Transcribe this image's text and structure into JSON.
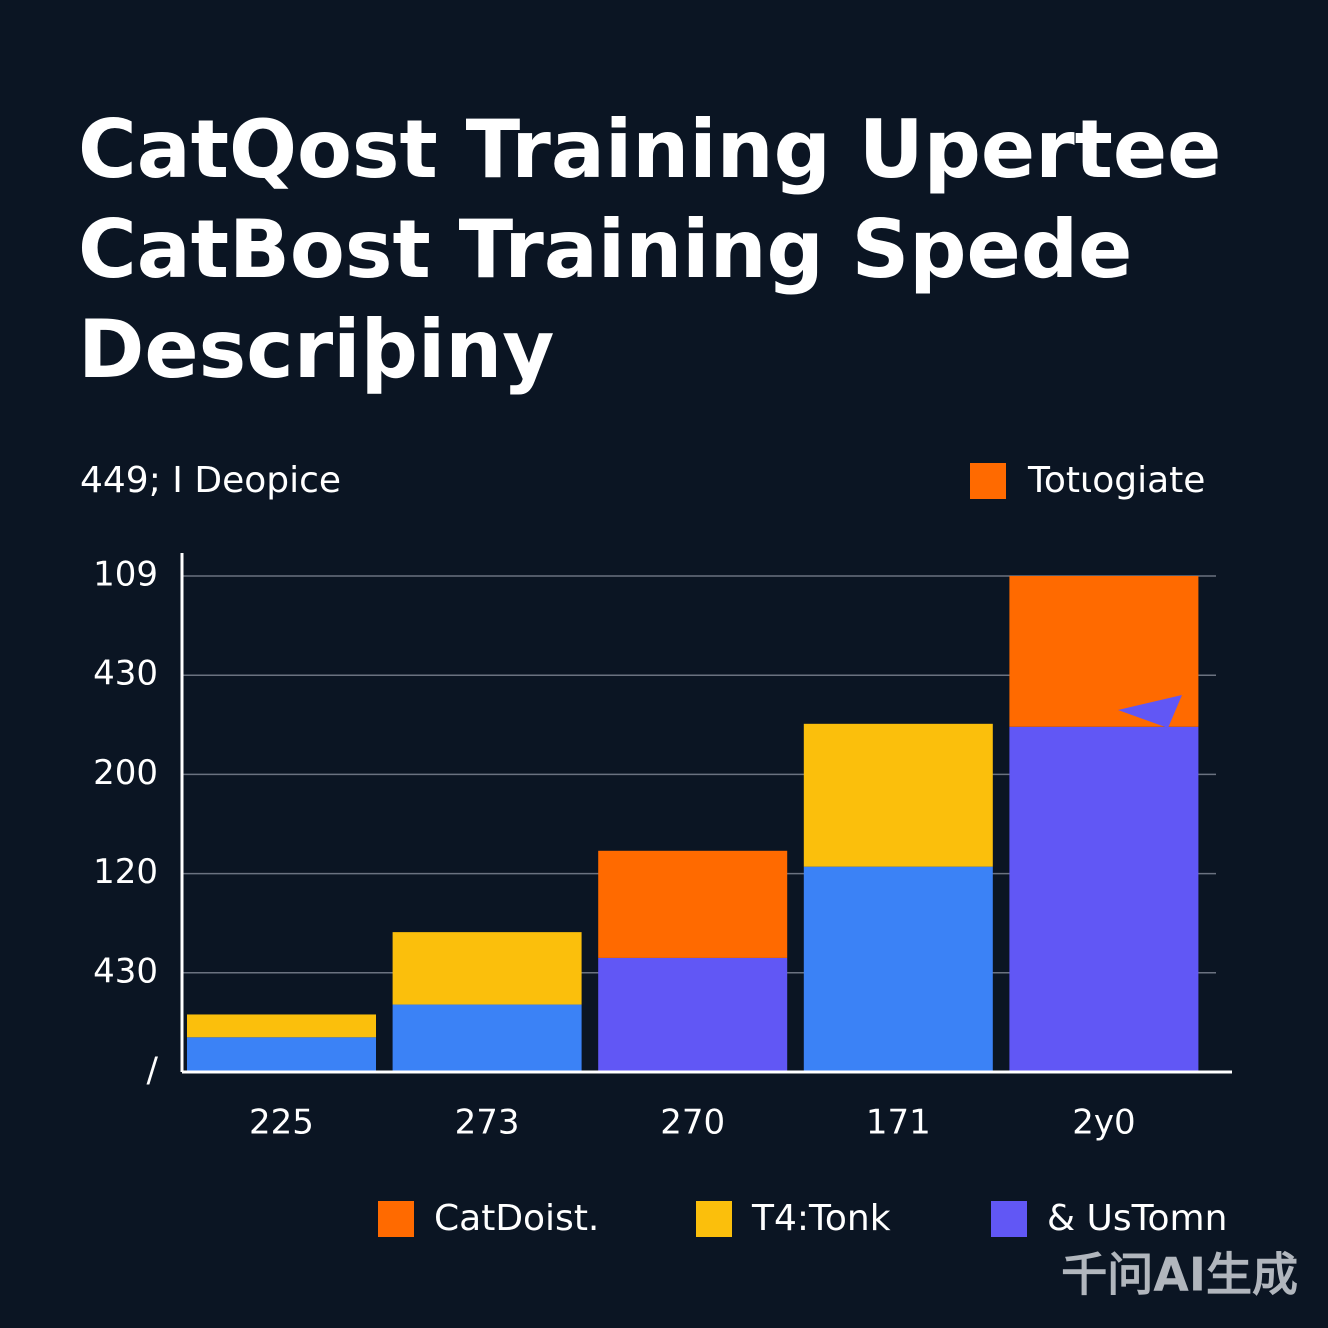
{
  "chart_data": {
    "type": "stacked_bar",
    "title": [
      "CatQost Training Upertee",
      "CatBost Training Spede",
      "Descriþiny"
    ],
    "subtitle": "449; I Deopice",
    "top_legend": {
      "name": "Totιogiate",
      "color": "#ff6a00"
    },
    "watermark": "千问AI生成",
    "categories": [
      "225",
      "273",
      "270",
      "171",
      "2y0"
    ],
    "series": [
      {
        "name": "& UsTomn",
        "color": "#6157f5",
        "colors": [
          "#3b82f6",
          "#3b82f6",
          "#6157f5",
          "#3b82f6",
          "#6157f5"
        ],
        "values": [
          0.35,
          0.68,
          1.15,
          2.07,
          3.48
        ]
      },
      {
        "name": "T4:Tonk",
        "color": "#fbbf0c",
        "values": [
          0.23,
          0.73,
          null,
          1.44,
          null
        ]
      },
      {
        "name": "CatDoist.",
        "color": "#ff6a00",
        "values": [
          null,
          null,
          1.08,
          null,
          1.52
        ]
      }
    ],
    "legend_order": [
      2,
      1,
      0
    ],
    "ylim": [
      0,
      5
    ],
    "yticks": [
      {
        "value": 0,
        "label": "/"
      },
      {
        "value": 1,
        "label": "430"
      },
      {
        "value": 2,
        "label": "120"
      },
      {
        "value": 3,
        "label": "200"
      },
      {
        "value": 4,
        "label": "430"
      },
      {
        "value": 5,
        "label": "109"
      }
    ],
    "grid": true
  }
}
